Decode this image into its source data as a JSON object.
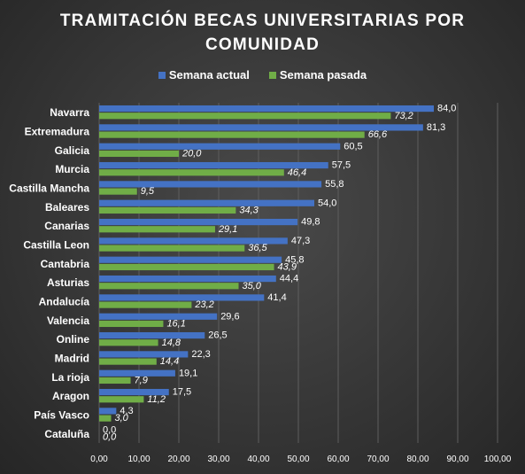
{
  "colors": {
    "current": "#4472C4",
    "previous": "#70AD47"
  },
  "chart_data": {
    "type": "bar",
    "orientation": "horizontal",
    "title": "TRAMITACIÓN  BECAS UNIVERSITARIAS  POR\nCOMUNIDAD",
    "legend_position": "top",
    "grid": true,
    "xlim": [
      0,
      100
    ],
    "x_ticks": [
      "0,00",
      "10,00",
      "20,00",
      "30,00",
      "40,00",
      "50,00",
      "60,00",
      "70,00",
      "80,00",
      "90,00",
      "100,00"
    ],
    "categories": [
      "Navarra",
      "Extremadura",
      "Galicia",
      "Murcia",
      "Castilla Mancha",
      "Baleares",
      "Canarias",
      "Castilla Leon",
      "Cantabria",
      "Asturias",
      "Andalucía",
      "Valencia",
      "Online",
      "Madrid",
      "La rioja",
      "Aragon",
      "País Vasco",
      "Cataluña"
    ],
    "series": [
      {
        "name": "Semana actual",
        "values": [
          84.0,
          81.3,
          60.5,
          57.5,
          55.8,
          54.0,
          49.8,
          47.3,
          45.8,
          44.4,
          41.4,
          29.6,
          26.5,
          22.3,
          19.1,
          17.5,
          4.3,
          0.0
        ],
        "labels": [
          "84,0",
          "81,3",
          "60,5",
          "57,5",
          "55,8",
          "54,0",
          "49,8",
          "47,3",
          "45,8",
          "44,4",
          "41,4",
          "29,6",
          "26,5",
          "22,3",
          "19,1",
          "17,5",
          "4,3",
          "0,0"
        ]
      },
      {
        "name": "Semana pasada",
        "values": [
          73.2,
          66.6,
          20.0,
          46.4,
          9.5,
          34.3,
          29.1,
          36.5,
          43.9,
          35.0,
          23.2,
          16.1,
          14.8,
          14.4,
          7.9,
          11.2,
          3.0,
          0.0
        ],
        "labels": [
          "73,2",
          "66,6",
          "20,0",
          "46,4",
          "9,5",
          "34,3",
          "29,1",
          "36,5",
          "43,9",
          "35,0",
          "23,2",
          "16,1",
          "14,8",
          "14,4",
          "7,9",
          "11,2",
          "3,0",
          "0,0"
        ]
      }
    ]
  }
}
